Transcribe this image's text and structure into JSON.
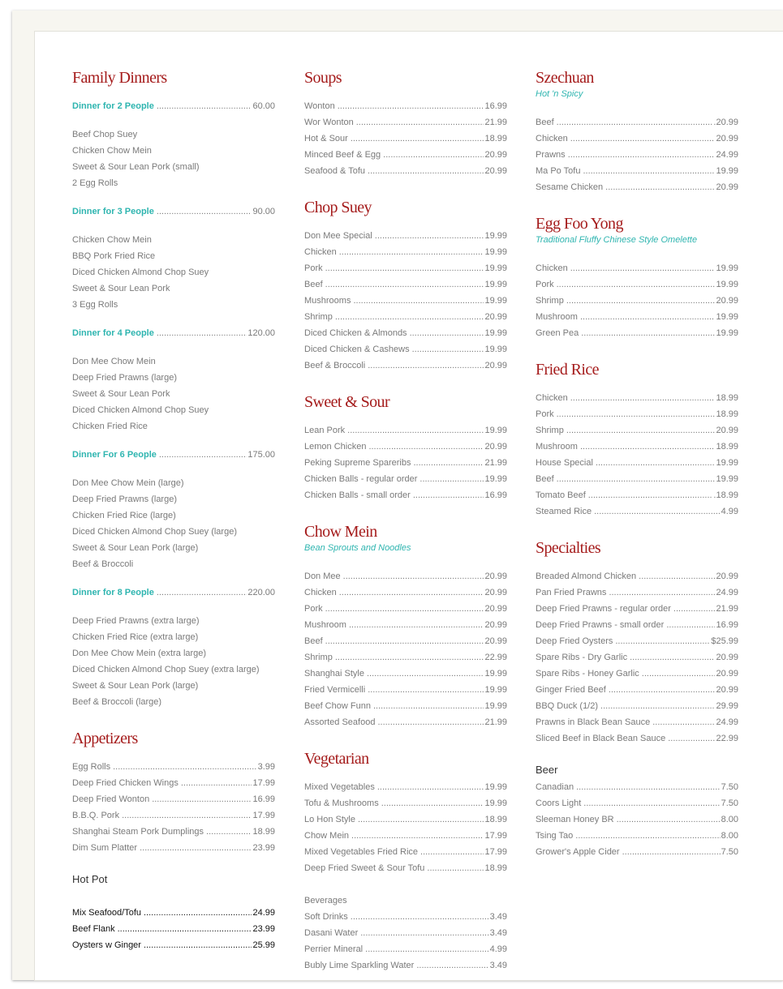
{
  "colors": {
    "heading": "#a51c1c",
    "accent": "#2fb5b0",
    "text": "#7a7a7a"
  },
  "columns": [
    [
      {
        "title": "Family Dinners",
        "dinners": [
          {
            "name": "Dinner for 2 People",
            "price": "60.00",
            "items": [
              "Beef Chop Suey",
              "Chicken Chow Mein",
              "Sweet & Sour Lean Pork (small)",
              "2 Egg Rolls"
            ]
          },
          {
            "name": "Dinner for 3 People",
            "price": "90.00",
            "items": [
              "Chicken Chow Mein",
              "BBQ Pork Fried Rice",
              "Diced Chicken Almond Chop Suey",
              "Sweet & Sour Lean Pork",
              "3 Egg Rolls"
            ]
          },
          {
            "name": "Dinner for 4 People",
            "price": "120.00",
            "items": [
              "Don Mee Chow Mein",
              "Deep Fried Prawns (large)",
              "Sweet & Sour Lean Pork",
              "Diced Chicken Almond Chop Suey",
              "Chicken Fried Rice"
            ]
          },
          {
            "name": "Dinner For 6 People",
            "price": "175.00",
            "items": [
              "Don Mee Chow Mein (large)",
              "Deep Fried Prawns (large)",
              "Chicken Fried Rice (large)",
              "Diced Chicken Almond Chop Suey (large)",
              "Sweet & Sour Lean Pork (large)",
              "Beef & Broccoli"
            ]
          },
          {
            "name": "Dinner for 8 People",
            "price": "220.00",
            "items": [
              "Deep Fried Prawns (extra large)",
              "Chicken Fried Rice (extra large)",
              "Don Mee Chow Mein (extra large)",
              "Diced Chicken Almond Chop Suey (extra large)",
              "Sweet & Sour Lean Pork (large)",
              "Beef & Broccoli (large)"
            ]
          }
        ]
      },
      {
        "title": "Appetizers",
        "items": [
          [
            "Egg Rolls",
            "3.99"
          ],
          [
            "Deep Fried Chicken Wings",
            "17.99"
          ],
          [
            "Deep Fried Wonton",
            "16.99"
          ],
          [
            "B.B.Q. Pork",
            "17.99"
          ],
          [
            "Shanghai Steam Pork Dumplings",
            "18.99"
          ],
          [
            "Dim Sum Platter",
            "23.99"
          ]
        ]
      },
      {
        "plain": "Hot Pot",
        "dark": true,
        "items": [
          [
            "Mix Seafood/Tofu",
            "24.99"
          ],
          [
            "Beef Flank",
            "23.99"
          ],
          [
            "Oysters w Ginger",
            "25.99"
          ]
        ]
      }
    ],
    [
      {
        "title": "Soups",
        "items": [
          [
            "Wonton",
            "16.99"
          ],
          [
            "Wor Wonton",
            "21.99"
          ],
          [
            "Hot & Sour",
            "18.99"
          ],
          [
            "Minced Beef & Egg",
            "20.99"
          ],
          [
            "Seafood & Tofu",
            "20.99"
          ]
        ]
      },
      {
        "title": "Chop Suey",
        "items": [
          [
            "Don Mee Special",
            "19.99"
          ],
          [
            "Chicken",
            "19.99"
          ],
          [
            "Pork",
            "19.99"
          ],
          [
            "Beef",
            "19.99"
          ],
          [
            "Mushrooms",
            "19.99"
          ],
          [
            "Shrimp",
            "20.99"
          ],
          [
            "Diced Chicken & Almonds",
            "19.99"
          ],
          [
            "Diced Chicken & Cashews",
            "19.99"
          ],
          [
            "Beef & Broccoli",
            "20.99"
          ]
        ]
      },
      {
        "title": "Sweet & Sour",
        "items": [
          [
            "Lean Pork",
            "19.99"
          ],
          [
            "Lemon Chicken",
            "20.99"
          ],
          [
            "Peking Supreme Spareribs",
            "21.99"
          ],
          [
            "Chicken Balls - regular order",
            "19.99"
          ],
          [
            "Chicken Balls - small order",
            "16.99"
          ]
        ]
      },
      {
        "title": "Chow Mein",
        "subtitle": "Bean Sprouts and Noodles",
        "items": [
          [
            "Don Mee",
            "20.99"
          ],
          [
            "Chicken",
            "20.99"
          ],
          [
            "Pork",
            "20.99"
          ],
          [
            "Mushroom",
            "20.99"
          ],
          [
            "Beef",
            "20.99"
          ],
          [
            "Shrimp",
            "22.99"
          ],
          [
            "Shanghai Style",
            "19.99"
          ],
          [
            "Fried Vermicelli",
            "19.99"
          ],
          [
            "Beef Chow Funn",
            "19.99"
          ],
          [
            "Assorted Seafood",
            "21.99"
          ]
        ]
      },
      {
        "title": "Vegetarian",
        "items": [
          [
            "Mixed Vegetables",
            "19.99"
          ],
          [
            "Tofu & Mushrooms",
            "19.99"
          ],
          [
            "Lo Hon Style",
            "18.99"
          ],
          [
            "Chow Mein",
            "17.99"
          ],
          [
            "Mixed Vegetables Fried Rice",
            "17.99"
          ],
          [
            "Deep Fried Sweet & Sour Tofu",
            "18.99"
          ]
        ]
      },
      {
        "smalltitle": "Beverages",
        "items": [
          [
            "Soft Drinks",
            "3.49"
          ],
          [
            "Dasani Water",
            "3.49"
          ],
          [
            "Perrier Mineral",
            "4.99"
          ],
          [
            "Bubly Lime Sparkling Water",
            "3.49"
          ]
        ]
      }
    ],
    [
      {
        "title": "Szechuan",
        "subtitle": "Hot 'n Spicy",
        "items": [
          [
            "Beef",
            ".20.99"
          ],
          [
            "Chicken",
            "20.99"
          ],
          [
            "Prawns",
            "24.99"
          ],
          [
            "Ma Po Tofu",
            "19.99"
          ],
          [
            "Sesame Chicken",
            "20.99"
          ]
        ]
      },
      {
        "title": "Egg Foo Yong",
        "subtitle": "Traditional Fluffy Chinese Style Omelette",
        "items": [
          [
            "Chicken",
            "19.99"
          ],
          [
            "Pork",
            "19.99"
          ],
          [
            "Shrimp",
            "20.99"
          ],
          [
            "Mushroom",
            "19.99"
          ],
          [
            "Green Pea",
            "19.99"
          ]
        ]
      },
      {
        "title": "Fried Rice",
        "items": [
          [
            "Chicken",
            "18.99"
          ],
          [
            "Pork",
            "18.99"
          ],
          [
            "Shrimp",
            "20.99"
          ],
          [
            "Mushroom",
            "18.99"
          ],
          [
            "House Special",
            "19.99"
          ],
          [
            "Beef",
            "19.99"
          ],
          [
            "Tomato Beef",
            ".18.99"
          ],
          [
            "Steamed Rice",
            "4.99"
          ]
        ]
      },
      {
        "title": "Specialties",
        "items": [
          [
            "Breaded Almond Chicken",
            "20.99"
          ],
          [
            "Pan Fried Prawns",
            "24.99"
          ],
          [
            "Deep Fried Prawns - regular order",
            "21.99"
          ],
          [
            "Deep Fried Prawns - small order",
            "16.99"
          ],
          [
            "Deep Fried Oysters",
            "$25.99"
          ],
          [
            "Spare Ribs - Dry Garlic",
            "20.99"
          ],
          [
            "Spare Ribs - Honey Garlic",
            "20.99"
          ],
          [
            "Ginger Fried Beef",
            "20.99"
          ],
          [
            "BBQ Duck (1/2)",
            "29.99"
          ],
          [
            "Prawns in Black Bean Sauce",
            "24.99"
          ],
          [
            "Sliced Beef in Black Bean Sauce",
            "22.99"
          ]
        ]
      },
      {
        "plain": "Beer",
        "items": [
          [
            "Canadian",
            "7.50"
          ],
          [
            "Coors Light",
            "7.50"
          ],
          [
            "Sleeman Honey BR",
            "8.00"
          ],
          [
            "Tsing Tao",
            "8.00"
          ],
          [
            "Grower's Apple Cider",
            "7.50"
          ]
        ]
      }
    ]
  ]
}
